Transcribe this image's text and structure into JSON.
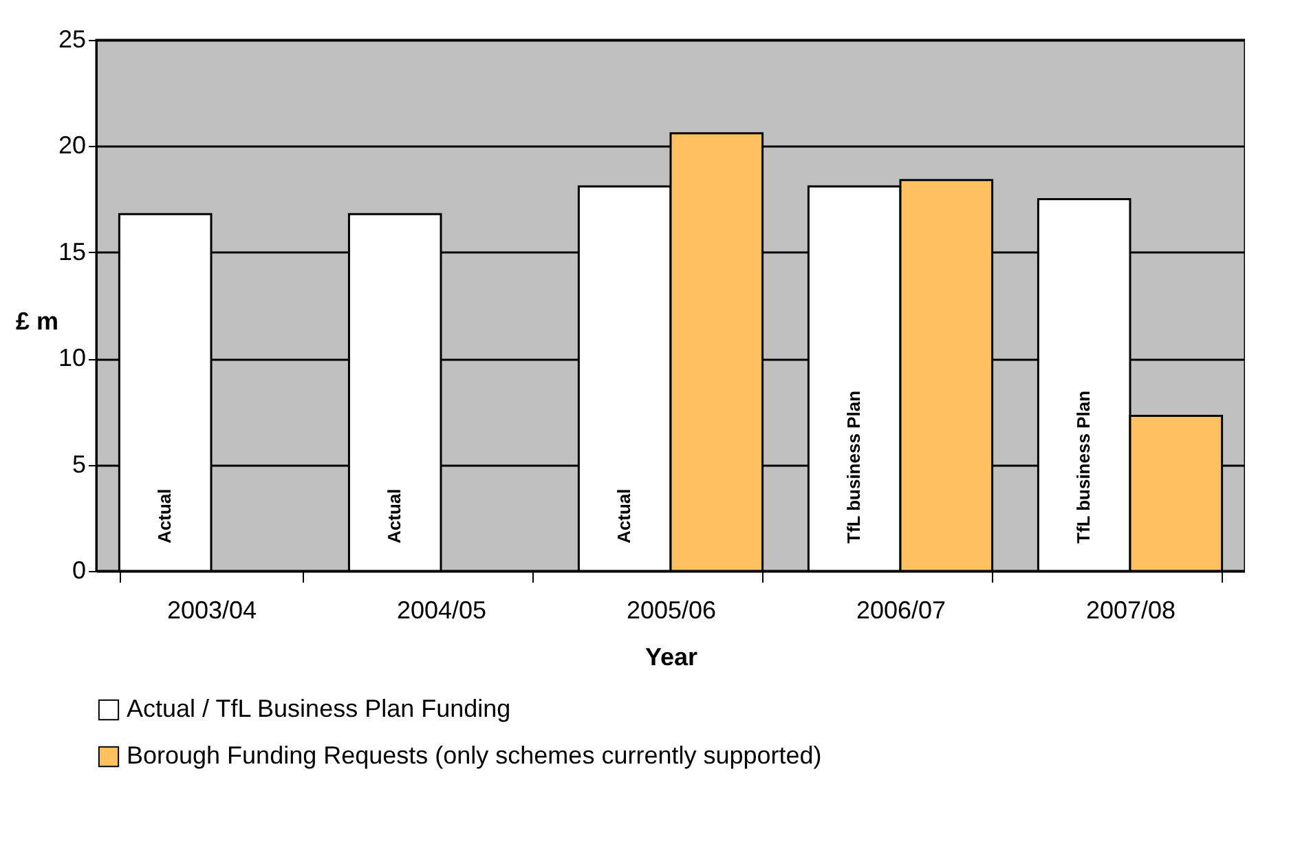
{
  "chart_data": {
    "type": "bar",
    "xlabel": "Year",
    "ylabel": "£ m",
    "categories": [
      "2003/04",
      "2004/05",
      "2005/06",
      "2006/07",
      "2007/08"
    ],
    "series": [
      {
        "name": "Actual / TfL Business Plan Funding",
        "color": "#ffffff",
        "values": [
          16.8,
          16.8,
          18.1,
          18.1,
          17.5
        ],
        "value_labels": [
          "Actual",
          "Actual",
          "Actual",
          "TfL business Plan",
          "TfL business Plan"
        ]
      },
      {
        "name": "Borough Funding Requests (only schemes currently supported)",
        "color": "#ffc060",
        "values": [
          null,
          null,
          20.6,
          18.4,
          7.3
        ]
      }
    ],
    "ylim": [
      0,
      25
    ],
    "yticks": [
      0,
      5,
      10,
      15,
      20,
      25
    ],
    "grid": "y",
    "legend": "bottom"
  }
}
